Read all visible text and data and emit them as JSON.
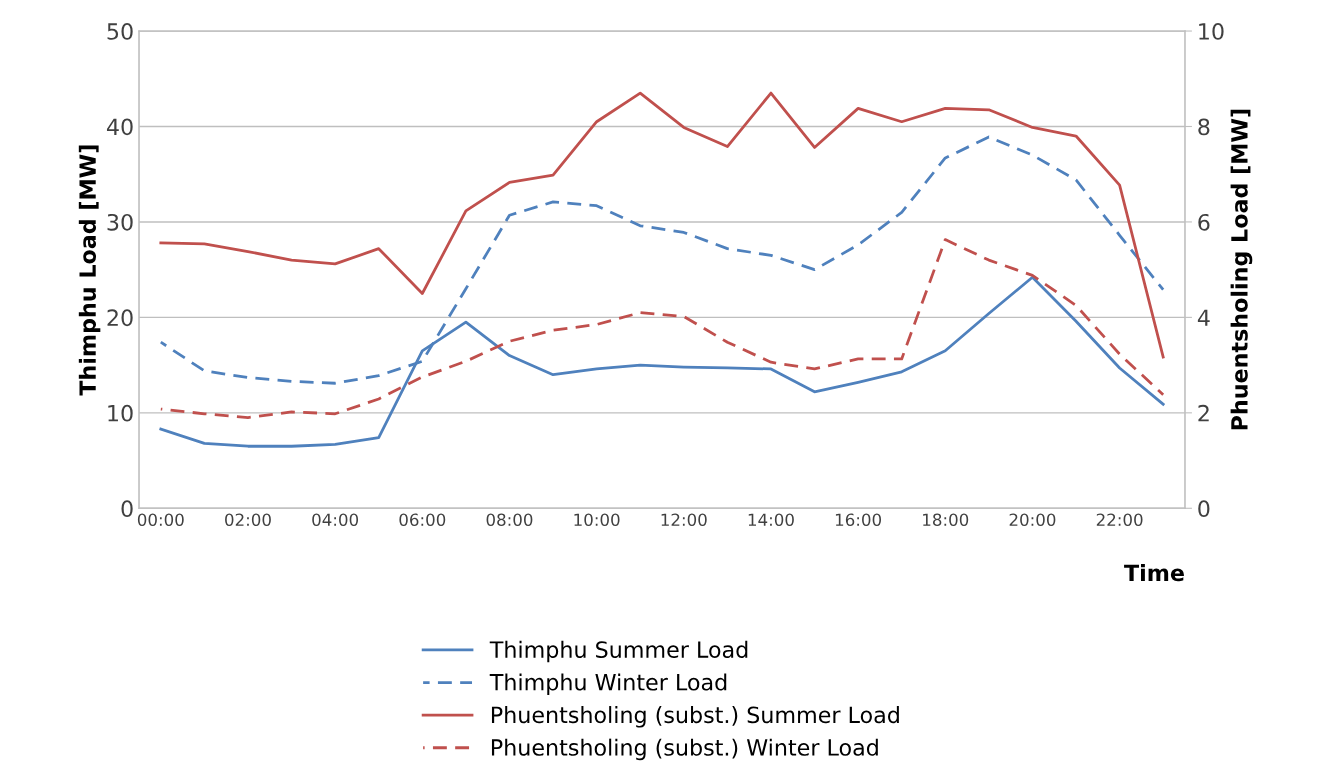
{
  "chart_data": {
    "type": "line",
    "xlabel": "Time",
    "ylabel": "Thimphu Load [MW]",
    "y2label": "Phuentsholing Load [MW]",
    "categories": [
      "00:00",
      null,
      "02:00",
      null,
      "04:00",
      null,
      "06:00",
      null,
      "08:00",
      null,
      "10:00",
      null,
      "12:00",
      null,
      "14:00",
      null,
      "16:00",
      null,
      "18:00",
      null,
      "20:00",
      null,
      "22:00",
      null
    ],
    "series": [
      {
        "name": "Thimphu Summer Load",
        "color": "#4f81bd",
        "line_style": "solid",
        "values": [
          8.3,
          6.8,
          6.5,
          6.5,
          6.7,
          7.4,
          16.5,
          19.5,
          16.0,
          14.0,
          14.6,
          15.0,
          14.8,
          14.7,
          14.6,
          12.2,
          13.2,
          14.3,
          16.5,
          20.4,
          24.2,
          19.6,
          14.7,
          10.9
        ]
      },
      {
        "name": "Thimphu Winter Load",
        "color": "#4f81bd",
        "line_style": "dashed",
        "values": [
          17.4,
          14.4,
          13.7,
          13.3,
          13.1,
          13.9,
          15.4,
          23.0,
          30.7,
          32.1,
          31.7,
          29.6,
          28.9,
          27.2,
          26.5,
          25.0,
          27.6,
          31.0,
          36.7,
          38.9,
          37.0,
          34.4,
          28.6,
          22.9
        ]
      },
      {
        "name": "Phuentsholing (subst.) Summer Load",
        "color": "#c0504d",
        "line_style": "solid",
        "axis": "y2",
        "values": [
          5.56,
          5.54,
          5.38,
          5.2,
          5.12,
          5.44,
          4.5,
          6.23,
          6.83,
          6.98,
          8.1,
          8.7,
          7.98,
          7.58,
          8.7,
          7.56,
          8.38,
          8.1,
          8.38,
          8.35,
          7.98,
          7.8,
          6.77,
          3.17
        ]
      },
      {
        "name": "Phuentsholing (subst.) Winter Load",
        "color": "#c0504d",
        "line_style": "dashed",
        "axis": "y2",
        "values": [
          2.08,
          1.98,
          1.9,
          2.02,
          1.98,
          2.29,
          2.75,
          3.08,
          3.5,
          3.73,
          3.85,
          4.1,
          4.02,
          3.48,
          3.06,
          2.92,
          3.13,
          3.13,
          5.63,
          5.2,
          4.88,
          4.25,
          3.23,
          2.38
        ]
      }
    ],
    "ylim": [
      0,
      50
    ],
    "yticks": [
      0,
      10,
      20,
      30,
      40,
      50
    ],
    "y2lim": [
      0,
      10
    ],
    "y2ticks": [
      0,
      2,
      4,
      6,
      8,
      10
    ],
    "grid": "y",
    "legend": "bottom",
    "marker": "none"
  }
}
